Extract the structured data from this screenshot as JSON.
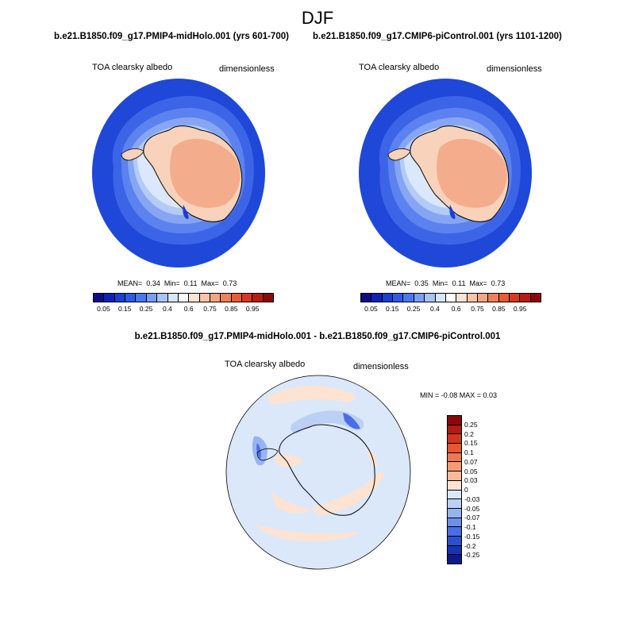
{
  "season": "DJF",
  "panels": [
    {
      "run": "b.e21.B1850.f09_g17.PMIP4-midHolo.001 (yrs 601-700)",
      "variable": "TOA clearsky albedo",
      "units": "dimensionless",
      "stats": {
        "mean_label": "MEAN=",
        "mean": "0.34",
        "min_label": "Min=",
        "min": "0.11",
        "max_label": "Max=",
        "max": "0.73"
      }
    },
    {
      "run": "b.e21.B1850.f09_g17.CMIP6-piControl.001 (yrs 1101-1200)",
      "variable": "TOA clearsky albedo",
      "units": "dimensionless",
      "stats": {
        "mean_label": "MEAN=",
        "mean": "0.35",
        "min_label": "Min=",
        "min": "0.11",
        "max_label": "Max=",
        "max": "0.73"
      }
    }
  ],
  "diff_panel": {
    "title": "b.e21.B1850.f09_g17.PMIP4-midHolo.001 - b.e21.B1850.f09_g17.CMIP6-piControl.001",
    "variable": "TOA clearsky albedo",
    "units": "dimensionless",
    "minmax": "MIN =  -0.08 MAX =   0.03"
  },
  "colorbar_main": {
    "labels": [
      "0.05",
      "0.15",
      "0.25",
      "0.4",
      "0.6",
      "0.75",
      "0.85",
      "0.95"
    ],
    "colors": [
      "#0b0f85",
      "#0e22b8",
      "#1a3fd6",
      "#2f5ae8",
      "#4a78f0",
      "#7a9ef3",
      "#a9c3f6",
      "#d6e6fb",
      "#ffffff",
      "#fde3d2",
      "#f8c5a8",
      "#f4a583",
      "#ef8059",
      "#e95b36",
      "#d93820",
      "#b81c10",
      "#8a0808"
    ]
  },
  "colorbar_diff": {
    "labels": [
      "0.25",
      "0.2",
      "0.15",
      "0.1",
      "0.07",
      "0.05",
      "0.03",
      "0",
      "-0.03",
      "-0.05",
      "-0.07",
      "-0.1",
      "-0.15",
      "-0.2",
      "-0.25"
    ],
    "colors": [
      "#8a0808",
      "#b31a10",
      "#d33520",
      "#e85530",
      "#f07850",
      "#f59a75",
      "#f8bb9c",
      "#fde3d2",
      "#dbe8fa",
      "#bcd0f6",
      "#97b4f2",
      "#6e90ec",
      "#4a6ee3",
      "#2c4fd2",
      "#1633b0",
      "#0c1b8a"
    ]
  }
}
